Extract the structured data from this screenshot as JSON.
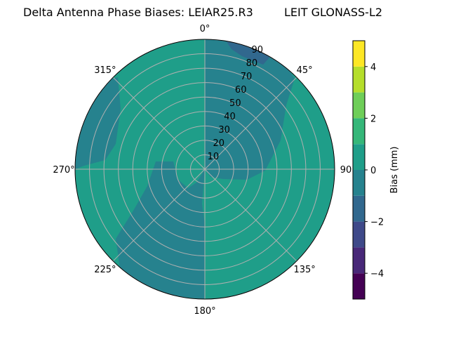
{
  "chart_data": {
    "type": "heatmap",
    "subtype": "polar-contour",
    "title": "Delta Antenna Phase Biases: LEIAR25.R3",
    "subtitle": "LEIT GLONASS-L2",
    "angular_ticks": [
      {
        "deg": 0,
        "label": "0°"
      },
      {
        "deg": 45,
        "label": "45°"
      },
      {
        "deg": 90,
        "label": "90"
      },
      {
        "deg": 135,
        "label": "135°"
      },
      {
        "deg": 180,
        "label": "180°"
      },
      {
        "deg": 225,
        "label": "225°"
      },
      {
        "deg": 270,
        "label": "270°"
      },
      {
        "deg": 315,
        "label": "315°"
      }
    ],
    "radial_ticks": [
      10,
      20,
      30,
      40,
      50,
      60,
      70,
      80,
      90
    ],
    "radial_range": [
      0,
      90
    ],
    "colorbar": {
      "label": "Bias (mm)",
      "range": [
        -5,
        5
      ],
      "ticks": [
        -4,
        -2,
        0,
        2,
        4
      ],
      "levels": [
        -5,
        -4.5,
        -4,
        -3.5,
        -3,
        -2.5,
        -2,
        -1.5,
        -1,
        -0.5,
        0,
        0.5,
        1,
        1.5,
        2,
        2.5,
        3,
        3.5,
        4,
        4.5,
        5
      ],
      "bands": [
        {
          "from": -5.0,
          "to": -4.0,
          "color": "#440154"
        },
        {
          "from": -4.0,
          "to": -3.0,
          "color": "#482878"
        },
        {
          "from": -3.0,
          "to": -2.0,
          "color": "#3e4989"
        },
        {
          "from": -2.0,
          "to": -1.0,
          "color": "#31688e"
        },
        {
          "from": -1.0,
          "to": 0.0,
          "color": "#26828e"
        },
        {
          "from": 0.0,
          "to": 1.0,
          "color": "#1f9e89"
        },
        {
          "from": 1.0,
          "to": 2.0,
          "color": "#35b779"
        },
        {
          "from": 2.0,
          "to": 3.0,
          "color": "#6ece58"
        },
        {
          "from": 3.0,
          "to": 4.0,
          "color": "#b5de2b"
        },
        {
          "from": 4.0,
          "to": 5.0,
          "color": "#fde725"
        }
      ]
    },
    "regions": [
      {
        "name": "background",
        "bias_range": [
          0,
          1
        ],
        "color": "#1f9e89"
      },
      {
        "name": "north-east-sector",
        "bias_range": [
          -1,
          0
        ],
        "color": "#26828e"
      },
      {
        "name": "north-rim-patch",
        "bias_range": [
          -2,
          -1
        ],
        "color": "#31688e"
      },
      {
        "name": "west-sector",
        "bias_range": [
          -1,
          0
        ],
        "color": "#26828e"
      },
      {
        "name": "south-west-sector",
        "bias_range": [
          -1,
          0
        ],
        "color": "#26828e"
      },
      {
        "name": "south-rim-patch",
        "bias_range": [
          -2,
          -1
        ],
        "color": "#31688e"
      }
    ],
    "grid": true,
    "legend": "colorbar-right"
  }
}
